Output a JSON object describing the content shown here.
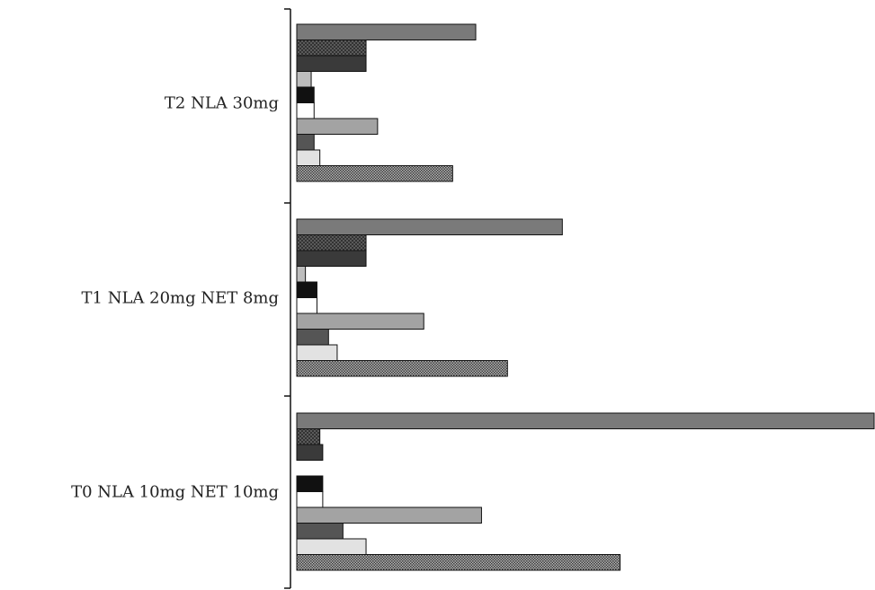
{
  "chart_data": {
    "type": "bar",
    "orientation": "horizontal",
    "title": "",
    "xlabel": "",
    "ylabel": "",
    "categories": [
      "T2 NLA 30mg",
      "T1 NLA 20mg NET 8mg",
      "T0 NLA 10mg NET 10mg"
    ],
    "xlim": [
      0,
      100
    ],
    "grid": false,
    "legend": "none",
    "series": [
      {
        "values": [
          31,
          46,
          100
        ],
        "fill": "#7a7a7a",
        "pattern": "solid"
      },
      {
        "values": [
          12,
          12,
          4
        ],
        "fill": "#5a5a5a",
        "pattern": "crosshatch"
      },
      {
        "values": [
          12,
          12,
          4.5
        ],
        "fill": "#3a3a3a",
        "pattern": "solid"
      },
      {
        "values": [
          2.5,
          1.5,
          0
        ],
        "fill": "#bdbdbd",
        "pattern": "solid"
      },
      {
        "values": [
          3,
          3.5,
          4.5
        ],
        "fill": "#111111",
        "pattern": "solid"
      },
      {
        "values": [
          3,
          3.5,
          4.5
        ],
        "fill": "#ffffff",
        "pattern": "solid"
      },
      {
        "values": [
          14,
          22,
          32
        ],
        "fill": "#a3a3a3",
        "pattern": "solid"
      },
      {
        "values": [
          3,
          5.5,
          8
        ],
        "fill": "#555555",
        "pattern": "solid"
      },
      {
        "values": [
          4,
          7,
          12
        ],
        "fill": "#e2e2e2",
        "pattern": "solid"
      },
      {
        "values": [
          27,
          36.5,
          56
        ],
        "fill": "#8a8a8a",
        "pattern": "dots"
      }
    ]
  }
}
